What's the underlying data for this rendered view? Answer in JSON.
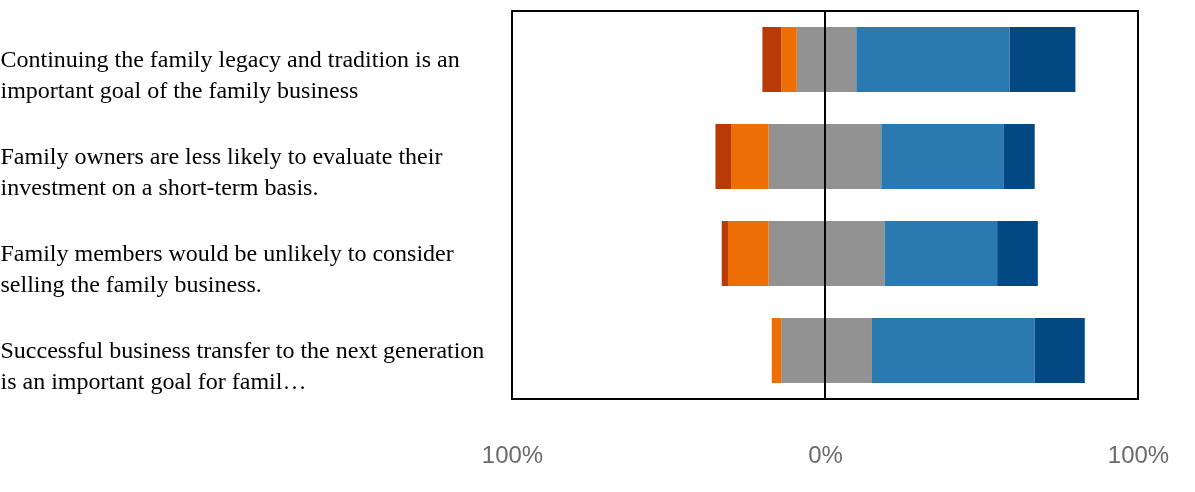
{
  "chart_data": {
    "type": "bar",
    "orientation": "horizontal",
    "stacked": true,
    "categories": [
      "Continuing the family legacy and tradition is an important goal of the family business",
      "Family owners are less likely to evaluate their investment on a short-term basis.",
      "Family members would be unlikely to consider selling the family business.",
      "Successful business transfer to the next generation is an important goal for famil…"
    ],
    "series": [
      {
        "color": "#929292",
        "values": [
          -9,
          -18,
          -18,
          -14
        ]
      },
      {
        "color": "#ec6e04",
        "values": [
          -5,
          -12,
          -13,
          -3
        ]
      },
      {
        "color": "#b93a04",
        "values": [
          -6,
          -5,
          -2,
          null
        ]
      },
      {
        "color": "#929292",
        "values": [
          10,
          18,
          19,
          15
        ]
      },
      {
        "color": "#2b79b1",
        "values": [
          49,
          39,
          36,
          52
        ]
      },
      {
        "color": "#024883",
        "values": [
          21,
          10,
          13,
          16
        ]
      }
    ],
    "xlim": [
      -100,
      100
    ],
    "xticks": [
      {
        "value": -100,
        "label": "100%"
      },
      {
        "value": 0,
        "label": "0%"
      },
      {
        "value": 100,
        "label": "100%"
      }
    ],
    "ref_lines": [
      {
        "axis": "x",
        "value": 0,
        "color": "#000000"
      }
    ],
    "grid": false,
    "legend": false
  }
}
